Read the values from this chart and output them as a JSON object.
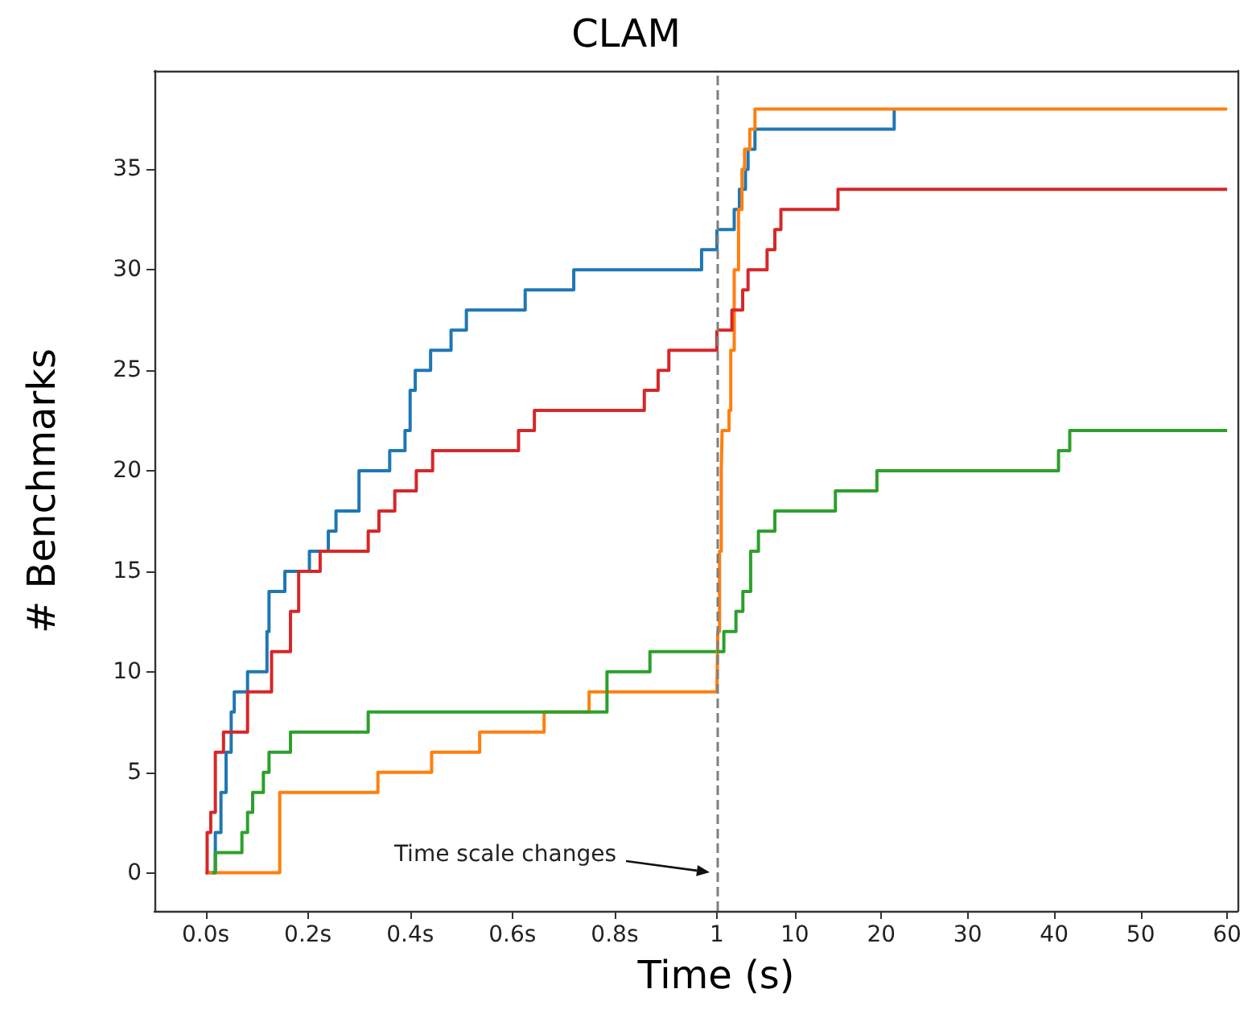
{
  "chart_data": [
    {
      "type": "step",
      "title": "CLAM",
      "ylabel": "# Benchmarks",
      "xlim": [
        -0.1,
        1
      ],
      "ylim": [
        -1.9,
        39.9
      ],
      "xticks": [
        {
          "value": 0,
          "label": "0.0s"
        },
        {
          "value": 0.2,
          "label": "0.2s"
        },
        {
          "value": 0.4,
          "label": "0.4s"
        },
        {
          "value": 0.6,
          "label": "0.6s"
        },
        {
          "value": 0.8,
          "label": "0.8s"
        }
      ],
      "yticks": [
        0,
        5,
        10,
        15,
        20,
        25,
        30,
        35
      ],
      "series": [
        {
          "color": "#1f77b4",
          "x": [
            0,
            0.019,
            0.03,
            0.04,
            0.05,
            0.056,
            0.082,
            0.12,
            0.124,
            0.155,
            0.203,
            0.24,
            0.255,
            0.3,
            0.36,
            0.39,
            0.4,
            0.41,
            0.44,
            0.48,
            0.51,
            0.625,
            0.72,
            0.97,
            1.0
          ],
          "values": [
            0,
            2,
            4,
            6,
            8,
            9,
            10,
            12,
            14,
            15,
            16,
            17,
            18,
            20,
            21,
            22,
            24,
            25,
            26,
            27,
            28,
            29,
            30,
            31,
            32
          ]
        },
        {
          "color": "#ff7f0e",
          "x": [
            0,
            0.145,
            0.337,
            0.442,
            0.536,
            0.662,
            0.75,
            1.0
          ],
          "values": [
            0,
            4,
            5,
            6,
            7,
            8,
            9,
            9
          ]
        },
        {
          "color": "#2ca02c",
          "x": [
            0.013,
            0.019,
            0.071,
            0.082,
            0.092,
            0.113,
            0.124,
            0.166,
            0.318,
            0.785,
            0.869,
            1.0
          ],
          "values": [
            0,
            1,
            2,
            3,
            4,
            5,
            6,
            7,
            8,
            10,
            11,
            11
          ]
        },
        {
          "color": "#d62728",
          "x": [
            0,
            0.003,
            0.01,
            0.019,
            0.035,
            0.082,
            0.129,
            0.166,
            0.182,
            0.224,
            0.318,
            0.339,
            0.37,
            0.412,
            0.444,
            0.612,
            0.643,
            0.858,
            0.885,
            0.906,
            1.0
          ],
          "values": [
            0,
            2,
            3,
            6,
            7,
            9,
            11,
            13,
            15,
            16,
            17,
            18,
            19,
            20,
            21,
            22,
            23,
            24,
            25,
            26,
            27
          ]
        }
      ],
      "annotations": [
        "Time scale changes"
      ]
    },
    {
      "type": "step",
      "xlabel": "Time (s)",
      "xlim": [
        1,
        61.2
      ],
      "ylim": [
        -1.9,
        39.9
      ],
      "tick_labels": "x",
      "xticks": [
        1,
        10,
        20,
        30,
        40,
        50,
        60
      ],
      "series": [
        {
          "color": "#1f77b4",
          "x": [
            1,
            3.0,
            3.6,
            4.3,
            4.6,
            5.4,
            21.5
          ],
          "values": [
            32,
            33,
            34,
            35,
            36,
            37,
            38
          ]
        },
        {
          "color": "#ff7f0e",
          "x": [
            1,
            1.1,
            1.3,
            1.5,
            1.6,
            2.4,
            2.6,
            3.0,
            3.5,
            3.9,
            4.2,
            4.8,
            5.4,
            60
          ],
          "values": [
            9,
            12,
            16,
            20,
            22,
            23,
            26,
            30,
            33,
            35,
            36,
            37,
            38,
            38
          ]
        },
        {
          "color": "#2ca02c",
          "x": [
            1,
            1.8,
            3.2,
            4.0,
            4.9,
            5.8,
            7.7,
            14.7,
            19.5,
            40.5,
            41.8,
            60
          ],
          "values": [
            11,
            12,
            13,
            14,
            16,
            17,
            18,
            19,
            20,
            21,
            22,
            22
          ]
        },
        {
          "color": "#d62728",
          "x": [
            1,
            2.73,
            3.98,
            4.6,
            6.8,
            7.7,
            8.4,
            15.0,
            60
          ],
          "values": [
            27,
            28,
            29,
            30,
            31,
            32,
            33,
            34,
            34
          ]
        }
      ],
      "ref_lines": [
        {
          "axis": "x",
          "value": 1,
          "color": "#7f7f7f",
          "line_style": "dashed"
        }
      ]
    }
  ]
}
